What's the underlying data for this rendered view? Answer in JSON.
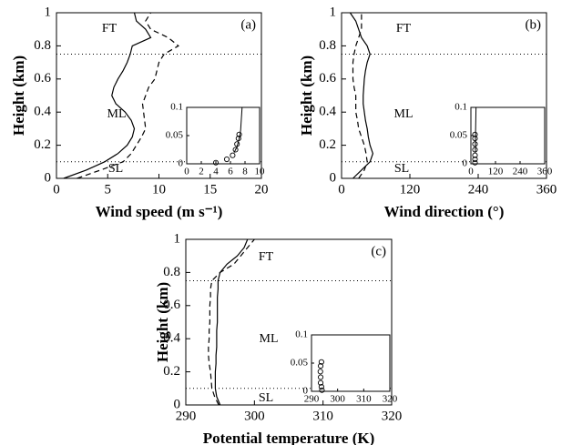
{
  "chart_data": [
    {
      "type": "line",
      "panel_label": "(a)",
      "y_label": "Height (km)",
      "x_label": "Wind speed (m s⁻¹)",
      "y": [
        0,
        0.05,
        0.1,
        0.15,
        0.2,
        0.25,
        0.3,
        0.35,
        0.4,
        0.45,
        0.5,
        0.55,
        0.6,
        0.65,
        0.7,
        0.75,
        0.8,
        0.85,
        0.9,
        0.95,
        1
      ],
      "series": [
        {
          "line_style": "solid",
          "color": "#000000",
          "values": [
            0.7,
            2.9,
            4.7,
            6.0,
            6.9,
            7.4,
            7.6,
            7.3,
            6.7,
            5.8,
            5.4,
            5.6,
            6.0,
            6.5,
            6.9,
            7.2,
            7.4,
            9.2,
            8.7,
            7.8,
            7.6
          ]
        },
        {
          "line_style": "dashed",
          "color": "#000000",
          "values": [
            2.0,
            4.3,
            6.5,
            7.3,
            7.8,
            8.3,
            8.7,
            8.6,
            8.5,
            8.4,
            8.7,
            9.0,
            9.6,
            9.8,
            10.0,
            10.5,
            11.9,
            10.9,
            9.2,
            8.7,
            9.2
          ]
        }
      ],
      "xlim": [
        0,
        20
      ],
      "xticks": [
        0,
        5,
        10,
        15,
        20
      ],
      "ylim": [
        0,
        1
      ],
      "yticks": [
        0,
        0.2,
        0.4,
        0.6,
        0.8,
        1
      ],
      "hlines": [
        0.1,
        0.75
      ],
      "annotations": [
        "FT",
        "ML",
        "SL"
      ],
      "inset": {
        "xlim": [
          0,
          10
        ],
        "xticks": [
          0,
          2,
          4,
          6,
          8,
          10
        ],
        "ylim": [
          0,
          0.1
        ],
        "yticks": [
          0,
          0.05,
          0.1
        ],
        "line": {
          "y": [
            0.02,
            0.03,
            0.04,
            0.05,
            0.06,
            0.08,
            0.1
          ],
          "values": [
            6.5,
            6.9,
            7.1,
            7.3,
            7.4,
            7.5,
            7.6
          ]
        },
        "points": {
          "y": [
            0.002,
            0.008,
            0.015,
            0.025,
            0.035,
            0.045,
            0.052
          ],
          "values": [
            4.0,
            5.5,
            6.3,
            6.7,
            6.9,
            7.1,
            7.2
          ]
        }
      }
    },
    {
      "type": "line",
      "panel_label": "(b)",
      "y_label": "Height (km)",
      "x_label": "Wind direction (°)",
      "y": [
        0,
        0.05,
        0.1,
        0.15,
        0.2,
        0.25,
        0.3,
        0.35,
        0.4,
        0.45,
        0.5,
        0.55,
        0.6,
        0.65,
        0.7,
        0.75,
        0.8,
        0.85,
        0.9,
        0.95,
        1
      ],
      "series": [
        {
          "line_style": "solid",
          "color": "#000000",
          "values": [
            20,
            35,
            50,
            55,
            50,
            47,
            45,
            42,
            40,
            38,
            38,
            39,
            40,
            42,
            45,
            50,
            45,
            35,
            30,
            25,
            15
          ]
        },
        {
          "line_style": "dashed",
          "color": "#000000",
          "values": [
            30,
            40,
            45,
            43,
            40,
            35,
            30,
            28,
            25,
            25,
            25,
            22,
            20,
            20,
            20,
            22,
            25,
            30,
            35,
            35,
            35
          ]
        }
      ],
      "xlim": [
        0,
        360
      ],
      "xticks": [
        0,
        120,
        240,
        360
      ],
      "ylim": [
        0,
        1
      ],
      "yticks": [
        0,
        0.2,
        0.4,
        0.6,
        0.8,
        1
      ],
      "hlines": [
        0.1,
        0.75
      ],
      "annotations": [
        "FT",
        "ML",
        "SL"
      ],
      "inset": {
        "xlim": [
          0,
          360
        ],
        "xticks": [
          0,
          120,
          240,
          360
        ],
        "ylim": [
          0,
          0.1
        ],
        "yticks": [
          0,
          0.05,
          0.1
        ],
        "line": {
          "y": [
            0.02,
            0.04,
            0.06,
            0.08,
            0.1
          ],
          "values": [
            22,
            22,
            23,
            24,
            25
          ]
        },
        "points": {
          "y": [
            0.002,
            0.008,
            0.015,
            0.025,
            0.035,
            0.045,
            0.052
          ],
          "values": [
            20,
            20,
            20,
            20,
            20,
            20,
            20
          ]
        }
      }
    },
    {
      "type": "line",
      "panel_label": "(c)",
      "y_label": "Height (km)",
      "x_label": "Potential temperature (K)",
      "y": [
        0,
        0.05,
        0.1,
        0.15,
        0.2,
        0.25,
        0.3,
        0.35,
        0.4,
        0.45,
        0.5,
        0.55,
        0.6,
        0.65,
        0.7,
        0.75,
        0.8,
        0.85,
        0.9,
        0.95,
        1
      ],
      "series": [
        {
          "line_style": "solid",
          "color": "#000000",
          "values": [
            295,
            294.5,
            294.3,
            294.3,
            294.3,
            294.4,
            294.4,
            294.5,
            294.5,
            294.5,
            294.6,
            294.6,
            294.6,
            294.6,
            294.7,
            294.7,
            295,
            296,
            297.5,
            298.5,
            299
          ]
        },
        {
          "line_style": "dashed",
          "color": "#000000",
          "values": [
            294.8,
            294.2,
            293.8,
            293.7,
            293.6,
            293.4,
            293.3,
            293.3,
            293.4,
            293.4,
            293.5,
            293.5,
            293.5,
            293.6,
            293.6,
            293.8,
            295,
            297,
            298,
            299,
            300
          ]
        }
      ],
      "xlim": [
        290,
        320
      ],
      "xticks": [
        290,
        300,
        310,
        320
      ],
      "ylim": [
        0,
        1
      ],
      "yticks": [
        0,
        0.2,
        0.4,
        0.6,
        0.8,
        1
      ],
      "hlines": [
        0.1,
        0.75
      ],
      "annotations": [
        "FT",
        "ML",
        "SL"
      ],
      "inset": {
        "xlim": [
          290,
          320
        ],
        "xticks": [
          290,
          300,
          310,
          320
        ],
        "ylim": [
          0,
          0.1
        ],
        "yticks": [
          0,
          0.05,
          0.1
        ],
        "points": {
          "y": [
            0.002,
            0.008,
            0.015,
            0.025,
            0.035,
            0.045,
            0.052
          ],
          "values": [
            294,
            293.8,
            293.5,
            293.5,
            293.4,
            293.5,
            293.8
          ]
        }
      }
    }
  ]
}
